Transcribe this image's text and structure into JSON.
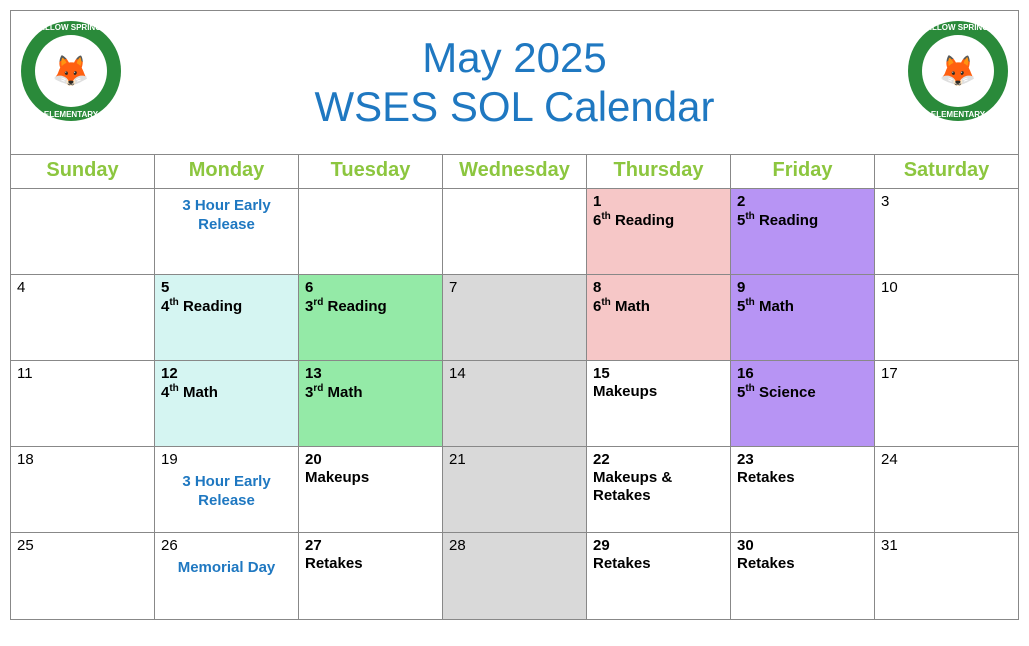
{
  "title": {
    "line1": "May 2025",
    "line2": "WSES SOL Calendar",
    "color": "#1F78C1",
    "fontsize": 42
  },
  "logo": {
    "ring_color": "#2a8a3a",
    "top_text": "WILLOW SPRINGS",
    "bottom_text": "ELEMENTARY",
    "mascot_glyph": "🦊"
  },
  "colors": {
    "header_text": "#8CC63F",
    "blue_label": "#1F78C1",
    "grade4": "#d5f5f2",
    "grade3": "#94eaa7",
    "gray": "#d9d9d9",
    "grade6": "#f6c7c7",
    "grade5": "#b794f4",
    "white": "#ffffff",
    "border": "#888888"
  },
  "day_headers": [
    "Sunday",
    "Monday",
    "Tuesday",
    "Wednesday",
    "Thursday",
    "Friday",
    "Saturday"
  ],
  "weeks": [
    [
      {
        "day": "",
        "label": "",
        "fill": "white",
        "label_style": "none"
      },
      {
        "day": "",
        "label": "3 Hour Early Release",
        "fill": "white",
        "label_style": "blue_centered"
      },
      {
        "day": "",
        "label": "",
        "fill": "white",
        "label_style": "none"
      },
      {
        "day": "",
        "label": "",
        "fill": "white",
        "label_style": "none"
      },
      {
        "day": "1",
        "label": "6|th| Reading",
        "fill": "grade6",
        "label_style": "ordinal"
      },
      {
        "day": "2",
        "label": "5|th| Reading",
        "fill": "grade5",
        "label_style": "ordinal"
      },
      {
        "day": "3",
        "label": "",
        "fill": "white",
        "label_style": "none"
      }
    ],
    [
      {
        "day": "4",
        "label": "",
        "fill": "white",
        "label_style": "none"
      },
      {
        "day": "5",
        "label": "4|th| Reading",
        "fill": "grade4",
        "label_style": "ordinal"
      },
      {
        "day": "6",
        "label": "3|rd| Reading",
        "fill": "grade3",
        "label_style": "ordinal"
      },
      {
        "day": "7",
        "label": "",
        "fill": "gray",
        "label_style": "none"
      },
      {
        "day": "8",
        "label": "6|th| Math",
        "fill": "grade6",
        "label_style": "ordinal"
      },
      {
        "day": "9",
        "label": "5|th| Math",
        "fill": "grade5",
        "label_style": "ordinal"
      },
      {
        "day": "10",
        "label": "",
        "fill": "white",
        "label_style": "none"
      }
    ],
    [
      {
        "day": "11",
        "label": "",
        "fill": "white",
        "label_style": "none"
      },
      {
        "day": "12",
        "label": "4|th| Math",
        "fill": "grade4",
        "label_style": "ordinal"
      },
      {
        "day": "13",
        "label": "3|rd| Math",
        "fill": "grade3",
        "label_style": "ordinal"
      },
      {
        "day": "14",
        "label": "",
        "fill": "gray",
        "label_style": "none"
      },
      {
        "day": "15",
        "label": "Makeups",
        "fill": "white",
        "label_style": "bold"
      },
      {
        "day": "16",
        "label": "5|th| Science",
        "fill": "grade5",
        "label_style": "ordinal"
      },
      {
        "day": "17",
        "label": "",
        "fill": "white",
        "label_style": "none"
      }
    ],
    [
      {
        "day": "18",
        "label": "",
        "fill": "white",
        "label_style": "none"
      },
      {
        "day": "19",
        "label": "3 Hour Early Release",
        "fill": "white",
        "label_style": "blue_centered_below"
      },
      {
        "day": "20",
        "label": "Makeups",
        "fill": "white",
        "label_style": "bold"
      },
      {
        "day": "21",
        "label": "",
        "fill": "gray",
        "label_style": "none"
      },
      {
        "day": "22",
        "label": "Makeups & Retakes",
        "fill": "white",
        "label_style": "bold"
      },
      {
        "day": "23",
        "label": "Retakes",
        "fill": "white",
        "label_style": "bold"
      },
      {
        "day": "24",
        "label": "",
        "fill": "white",
        "label_style": "none"
      }
    ],
    [
      {
        "day": "25",
        "label": "",
        "fill": "white",
        "label_style": "none"
      },
      {
        "day": "26",
        "label": "Memorial Day",
        "fill": "white",
        "label_style": "blue_centered_below"
      },
      {
        "day": "27",
        "label": "Retakes",
        "fill": "white",
        "label_style": "bold"
      },
      {
        "day": "28",
        "label": "",
        "fill": "gray",
        "label_style": "none"
      },
      {
        "day": "29",
        "label": "Retakes",
        "fill": "white",
        "label_style": "bold"
      },
      {
        "day": "30",
        "label": "Retakes",
        "fill": "white",
        "label_style": "bold"
      },
      {
        "day": "31",
        "label": "",
        "fill": "white",
        "label_style": "none"
      }
    ]
  ]
}
